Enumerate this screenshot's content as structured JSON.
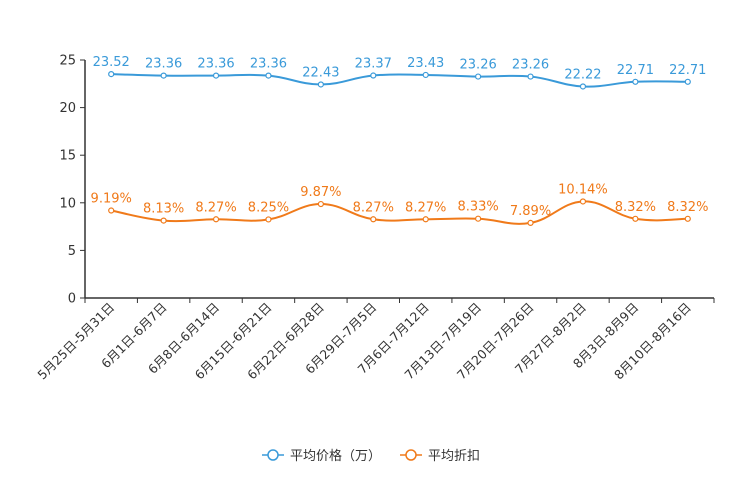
{
  "chart_data": {
    "type": "line",
    "title": "",
    "xlabel": "",
    "ylabel": "",
    "ylim": [
      0,
      25
    ],
    "yticks": [
      0,
      5,
      10,
      15,
      20,
      25
    ],
    "ytick_labels": [
      "0",
      "5",
      "10",
      "15",
      "20",
      "25"
    ],
    "grid": false,
    "legend_position": "bottom-center",
    "categories": [
      "5月25日-5月31日",
      "6月1日-6月7日",
      "6月8日-6月14日",
      "6月15日-6月21日",
      "6月22日-6月28日",
      "6月29日-7月5日",
      "7月6日-7月12日",
      "7月13日-7月19日",
      "7月20日-7月26日",
      "7月27日-8月2日",
      "8月3日-8月9日",
      "8月10日-8月16日"
    ],
    "series": [
      {
        "name": "平均价格（万）",
        "color": "#3a9ad9",
        "values": [
          23.52,
          23.36,
          23.36,
          23.36,
          22.43,
          23.37,
          23.43,
          23.26,
          23.26,
          22.22,
          22.71,
          22.71
        ],
        "labels": [
          "23.52",
          "23.36",
          "23.36",
          "23.36",
          "22.43",
          "23.37",
          "23.43",
          "23.26",
          "23.26",
          "22.22",
          "22.71",
          "22.71"
        ]
      },
      {
        "name": "平均折扣",
        "color": "#f07a1a",
        "values": [
          9.19,
          8.13,
          8.27,
          8.25,
          9.87,
          8.27,
          8.27,
          8.33,
          7.89,
          10.14,
          8.32,
          8.32
        ],
        "labels": [
          "9.19%",
          "8.13%",
          "8.27%",
          "8.25%",
          "9.87%",
          "8.27%",
          "8.27%",
          "8.33%",
          "7.89%",
          "10.14%",
          "8.32%",
          "8.32%"
        ]
      }
    ]
  }
}
